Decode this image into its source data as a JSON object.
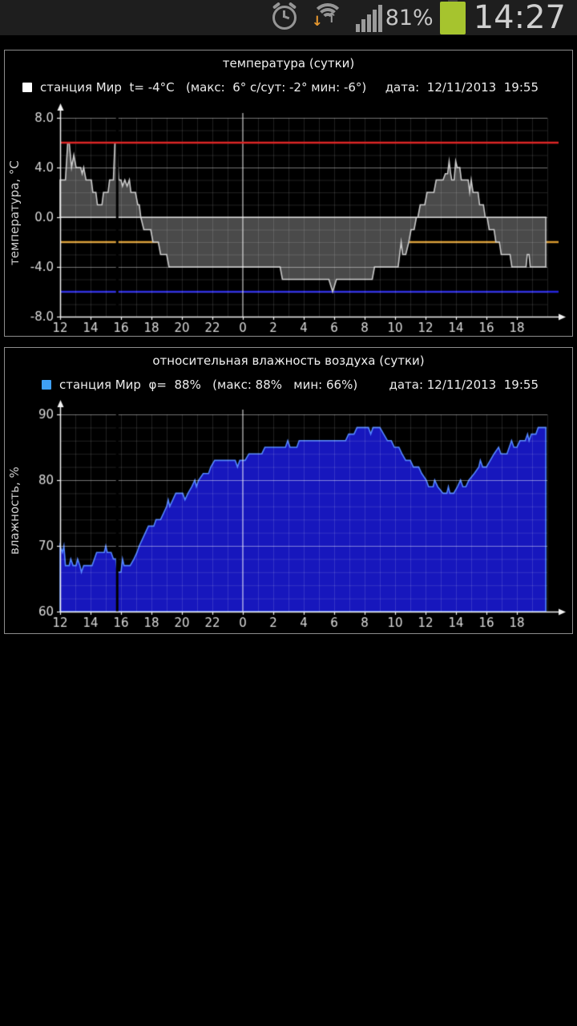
{
  "status_bar": {
    "time": "14:27",
    "battery_percent": "81%"
  },
  "chart_data": [
    {
      "type": "area",
      "title": "температура (сутки)",
      "station": "станция Мир",
      "current": "t= -4°C",
      "stats": "(макс:  6° с/сут: -2° мин: -6°)",
      "date_label": "дата:  12/11/2013  19:55",
      "ylabel": "температура, °C",
      "ylim": [
        -8,
        8
      ],
      "y_minor_step": 1,
      "y_major_step": 4,
      "yticks": [
        {
          "v": 8,
          "label": "8.0"
        },
        {
          "v": 4,
          "label": "4.0"
        },
        {
          "v": 0,
          "label": "0.0"
        },
        {
          "v": -4,
          "label": "-4.0"
        },
        {
          "v": -8,
          "label": "-8.0"
        }
      ],
      "x_hours_total": 32,
      "x_tick_hours": [
        0,
        2,
        4,
        6,
        8,
        10,
        12,
        14,
        16,
        18,
        20,
        22,
        24,
        26,
        28,
        30
      ],
      "x_tick_labels": [
        "12",
        "14",
        "16",
        "18",
        "20",
        "22",
        "0",
        "2",
        "4",
        "6",
        "8",
        "10",
        "12",
        "14",
        "16",
        "18"
      ],
      "midnight_hour": 12,
      "gap_hour": 3.75,
      "baseline": 0,
      "line_color": "#c9c9c9",
      "fill_color": "#4a4a4a",
      "legend_marker_color": "#ffffff",
      "ref_lines": [
        {
          "name": "max",
          "value": 6,
          "color": "#dd2626",
          "on_top": true
        },
        {
          "name": "avg-day",
          "value": -2,
          "color": "#d6992e",
          "on_top": false
        },
        {
          "name": "min",
          "value": -6,
          "color": "#2525dd",
          "on_top": false
        }
      ],
      "points": [
        [
          0,
          3
        ],
        [
          0.35,
          3
        ],
        [
          0.5,
          6
        ],
        [
          0.6,
          6
        ],
        [
          0.75,
          4
        ],
        [
          0.9,
          5
        ],
        [
          1.05,
          4
        ],
        [
          1.35,
          4
        ],
        [
          1.45,
          3.5
        ],
        [
          1.55,
          4
        ],
        [
          1.7,
          3
        ],
        [
          2.05,
          3
        ],
        [
          2.15,
          2
        ],
        [
          2.35,
          2
        ],
        [
          2.45,
          1
        ],
        [
          2.75,
          1
        ],
        [
          2.85,
          2
        ],
        [
          3.15,
          2
        ],
        [
          3.25,
          3
        ],
        [
          3.5,
          3
        ],
        [
          3.6,
          6
        ],
        [
          3.72,
          6
        ],
        [
          3.85,
          3
        ],
        [
          4.0,
          3
        ],
        [
          4.1,
          2.5
        ],
        [
          4.25,
          3
        ],
        [
          4.4,
          2.5
        ],
        [
          4.55,
          3
        ],
        [
          4.65,
          2
        ],
        [
          4.95,
          2
        ],
        [
          5.1,
          1
        ],
        [
          5.2,
          1
        ],
        [
          5.3,
          0
        ],
        [
          5.5,
          -1
        ],
        [
          5.95,
          -1
        ],
        [
          6.1,
          -2
        ],
        [
          6.45,
          -2
        ],
        [
          6.6,
          -3
        ],
        [
          7.0,
          -3
        ],
        [
          7.15,
          -4
        ],
        [
          14.45,
          -4
        ],
        [
          14.6,
          -5
        ],
        [
          17.65,
          -5
        ],
        [
          17.9,
          -6
        ],
        [
          18.15,
          -5
        ],
        [
          20.5,
          -5
        ],
        [
          20.65,
          -4
        ],
        [
          22.2,
          -4
        ],
        [
          22.3,
          -3
        ],
        [
          22.4,
          -2
        ],
        [
          22.5,
          -3
        ],
        [
          22.7,
          -3
        ],
        [
          22.9,
          -2
        ],
        [
          23.05,
          -1
        ],
        [
          23.25,
          -1
        ],
        [
          23.4,
          0
        ],
        [
          23.5,
          0
        ],
        [
          23.65,
          1
        ],
        [
          23.95,
          1
        ],
        [
          24.1,
          2
        ],
        [
          24.55,
          2
        ],
        [
          24.7,
          3
        ],
        [
          25.15,
          3
        ],
        [
          25.3,
          3.5
        ],
        [
          25.45,
          3.5
        ],
        [
          25.55,
          4.5
        ],
        [
          25.65,
          3.5
        ],
        [
          25.72,
          3
        ],
        [
          25.88,
          3
        ],
        [
          25.98,
          4.5
        ],
        [
          26.08,
          4
        ],
        [
          26.25,
          4
        ],
        [
          26.35,
          3
        ],
        [
          26.8,
          3
        ],
        [
          26.9,
          2
        ],
        [
          27.0,
          3
        ],
        [
          27.12,
          2
        ],
        [
          27.45,
          2
        ],
        [
          27.55,
          1
        ],
        [
          27.8,
          1
        ],
        [
          27.92,
          0
        ],
        [
          28.05,
          0
        ],
        [
          28.18,
          -1
        ],
        [
          28.5,
          -1
        ],
        [
          28.62,
          -2
        ],
        [
          28.85,
          -2
        ],
        [
          28.97,
          -3
        ],
        [
          29.55,
          -3
        ],
        [
          29.67,
          -4
        ],
        [
          30.6,
          -4
        ],
        [
          30.68,
          -3
        ],
        [
          30.8,
          -3
        ],
        [
          30.88,
          -4
        ],
        [
          31.9,
          -4
        ]
      ]
    },
    {
      "type": "area",
      "title": "относительная влажность воздуха (сутки)",
      "station": "станция Мир",
      "current": "φ=  88%",
      "stats": "(макс: 88%   мин: 66%)",
      "date_label": "дата: 12/11/2013  19:55",
      "ylabel": "влажность, %",
      "ylim": [
        60,
        90
      ],
      "y_minor_step": 2,
      "y_major_step": 10,
      "yticks": [
        {
          "v": 90,
          "label": "90"
        },
        {
          "v": 80,
          "label": "80"
        },
        {
          "v": 70,
          "label": "70"
        },
        {
          "v": 60,
          "label": "60"
        }
      ],
      "x_hours_total": 32,
      "x_tick_hours": [
        0,
        2,
        4,
        6,
        8,
        10,
        12,
        14,
        16,
        18,
        20,
        22,
        24,
        26,
        28,
        30
      ],
      "x_tick_labels": [
        "12",
        "14",
        "16",
        "18",
        "20",
        "22",
        "0",
        "2",
        "4",
        "6",
        "8",
        "10",
        "12",
        "14",
        "16",
        "18"
      ],
      "midnight_hour": 12,
      "gap_hour": 3.75,
      "baseline": 60,
      "line_color": "#5285ff",
      "fill_color": "#1717bd",
      "legend_marker_color": "#3fa0f5",
      "ref_lines": [],
      "points": [
        [
          0,
          70
        ],
        [
          0.15,
          69
        ],
        [
          0.25,
          70
        ],
        [
          0.35,
          67
        ],
        [
          0.6,
          67
        ],
        [
          0.7,
          68
        ],
        [
          0.85,
          67
        ],
        [
          1.05,
          67
        ],
        [
          1.15,
          68
        ],
        [
          1.3,
          67
        ],
        [
          1.4,
          66
        ],
        [
          1.55,
          67
        ],
        [
          2.1,
          67
        ],
        [
          2.25,
          68
        ],
        [
          2.4,
          69
        ],
        [
          2.9,
          69
        ],
        [
          3.0,
          70
        ],
        [
          3.1,
          69
        ],
        [
          3.35,
          69
        ],
        [
          3.5,
          68
        ],
        [
          3.65,
          68
        ],
        [
          3.75,
          66
        ],
        [
          4.0,
          66
        ],
        [
          4.1,
          68
        ],
        [
          4.2,
          67
        ],
        [
          4.6,
          67
        ],
        [
          4.85,
          68
        ],
        [
          5.05,
          69
        ],
        [
          5.2,
          70
        ],
        [
          5.4,
          71
        ],
        [
          5.6,
          72
        ],
        [
          5.8,
          73
        ],
        [
          6.15,
          73
        ],
        [
          6.3,
          74
        ],
        [
          6.6,
          74
        ],
        [
          6.8,
          75
        ],
        [
          7.0,
          76
        ],
        [
          7.1,
          77
        ],
        [
          7.2,
          76
        ],
        [
          7.4,
          77
        ],
        [
          7.6,
          78
        ],
        [
          8.05,
          78
        ],
        [
          8.2,
          77
        ],
        [
          8.4,
          78
        ],
        [
          8.65,
          79
        ],
        [
          8.85,
          80
        ],
        [
          8.95,
          79
        ],
        [
          9.1,
          80
        ],
        [
          9.4,
          81
        ],
        [
          9.75,
          81
        ],
        [
          9.9,
          82
        ],
        [
          10.15,
          83
        ],
        [
          11.5,
          83
        ],
        [
          11.65,
          82
        ],
        [
          11.8,
          83
        ],
        [
          12.15,
          83
        ],
        [
          12.4,
          84
        ],
        [
          13.25,
          84
        ],
        [
          13.45,
          85
        ],
        [
          14.8,
          85
        ],
        [
          14.95,
          86
        ],
        [
          15.1,
          85
        ],
        [
          15.55,
          85
        ],
        [
          15.7,
          86
        ],
        [
          16.45,
          86
        ],
        [
          18.75,
          86
        ],
        [
          18.95,
          87
        ],
        [
          19.3,
          87
        ],
        [
          19.5,
          88
        ],
        [
          20.25,
          88
        ],
        [
          20.4,
          87
        ],
        [
          20.55,
          88
        ],
        [
          21.0,
          88
        ],
        [
          21.25,
          87
        ],
        [
          21.5,
          86
        ],
        [
          21.75,
          86
        ],
        [
          21.95,
          85
        ],
        [
          22.25,
          85
        ],
        [
          22.45,
          84
        ],
        [
          22.7,
          83
        ],
        [
          23.0,
          83
        ],
        [
          23.2,
          82
        ],
        [
          23.55,
          82
        ],
        [
          23.75,
          81
        ],
        [
          24.05,
          80
        ],
        [
          24.2,
          79
        ],
        [
          24.5,
          79
        ],
        [
          24.6,
          80
        ],
        [
          24.8,
          79
        ],
        [
          25.15,
          78
        ],
        [
          25.4,
          78
        ],
        [
          25.5,
          79
        ],
        [
          25.6,
          78
        ],
        [
          25.85,
          78
        ],
        [
          26.1,
          79
        ],
        [
          26.3,
          80
        ],
        [
          26.45,
          79
        ],
        [
          26.65,
          79
        ],
        [
          26.85,
          80
        ],
        [
          27.2,
          81
        ],
        [
          27.5,
          82
        ],
        [
          27.6,
          83
        ],
        [
          27.75,
          82
        ],
        [
          28.0,
          82
        ],
        [
          28.25,
          83
        ],
        [
          28.5,
          84
        ],
        [
          28.8,
          85
        ],
        [
          28.95,
          84
        ],
        [
          29.35,
          84
        ],
        [
          29.5,
          85
        ],
        [
          29.65,
          86
        ],
        [
          29.8,
          85
        ],
        [
          30.0,
          85
        ],
        [
          30.2,
          86
        ],
        [
          30.55,
          86
        ],
        [
          30.7,
          87
        ],
        [
          30.8,
          86
        ],
        [
          30.95,
          87
        ],
        [
          31.25,
          87
        ],
        [
          31.4,
          88
        ],
        [
          31.9,
          88
        ]
      ]
    }
  ]
}
